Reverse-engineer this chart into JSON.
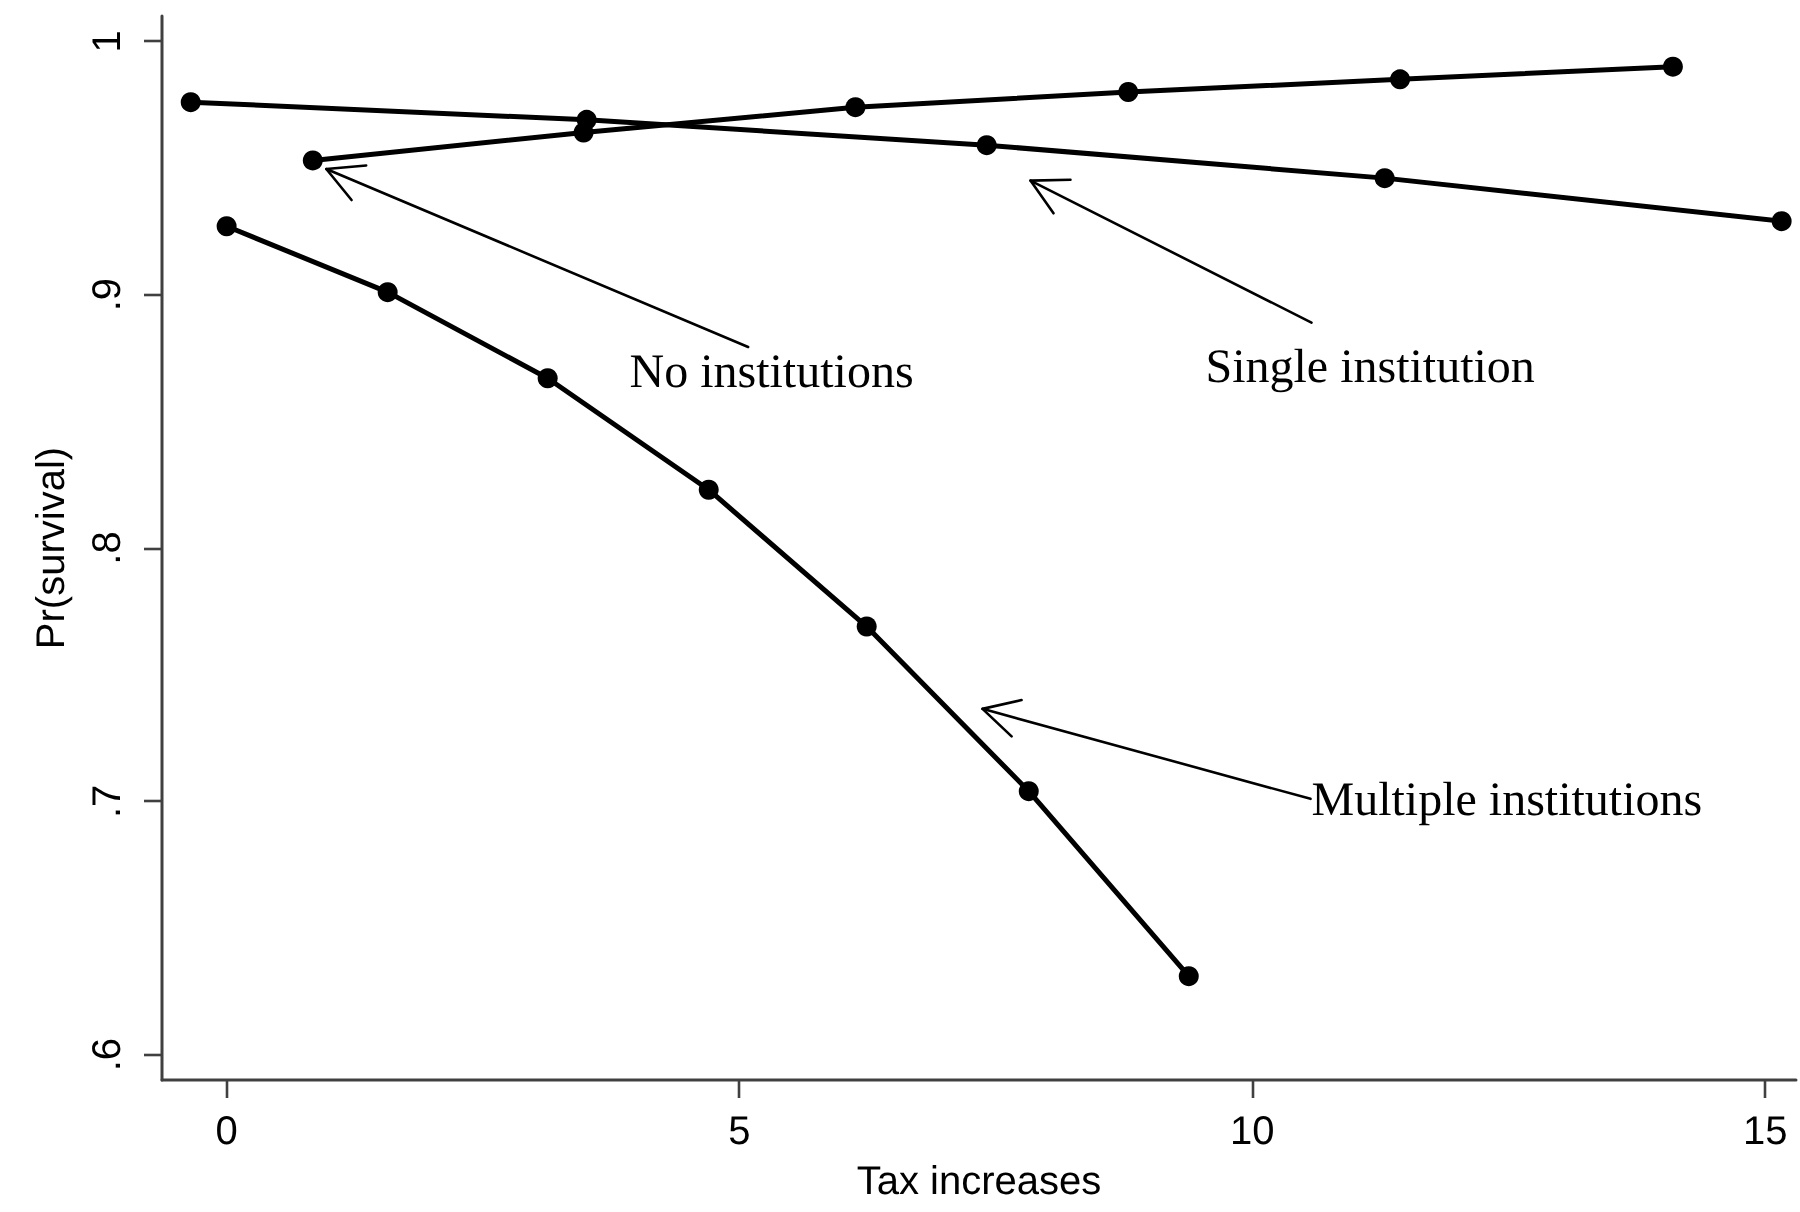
{
  "chart_data": {
    "type": "line",
    "xlabel": "Tax increases",
    "ylabel": "Pr(survival)",
    "xlim": [
      -0.63,
      15.3
    ],
    "xticks": [
      0,
      5,
      10,
      15
    ],
    "ylim": [
      0.59,
      1.01
    ],
    "yticks": [
      {
        "value": 0.6,
        "label": ".6"
      },
      {
        "value": 0.7,
        "label": ".7"
      },
      {
        "value": 0.8,
        "label": ".8"
      },
      {
        "value": 0.9,
        "label": ".9"
      },
      {
        "value": 1,
        "label": "1"
      }
    ],
    "marker": "circle",
    "line_style": "solid",
    "series": [
      {
        "name": "No institutions",
        "color": "#000000",
        "x": [
          0.84,
          3.48,
          6.13,
          8.79,
          11.44,
          14.1
        ],
        "values": [
          0.953,
          0.964,
          0.974,
          0.98,
          0.985,
          0.99
        ]
      },
      {
        "name": "Single institution",
        "color": "#000000",
        "x": [
          -0.35,
          3.51,
          7.41,
          11.29,
          15.16
        ],
        "values": [
          0.976,
          0.969,
          0.959,
          0.946,
          0.929
        ]
      },
      {
        "name": "Multiple institutions",
        "color": "#000000",
        "x": [
          0,
          1.57,
          3.13,
          4.7,
          6.24,
          7.82,
          9.38
        ],
        "values": [
          0.927,
          0.901,
          0.867,
          0.823,
          0.769,
          0.704,
          0.631
        ]
      }
    ]
  }
}
